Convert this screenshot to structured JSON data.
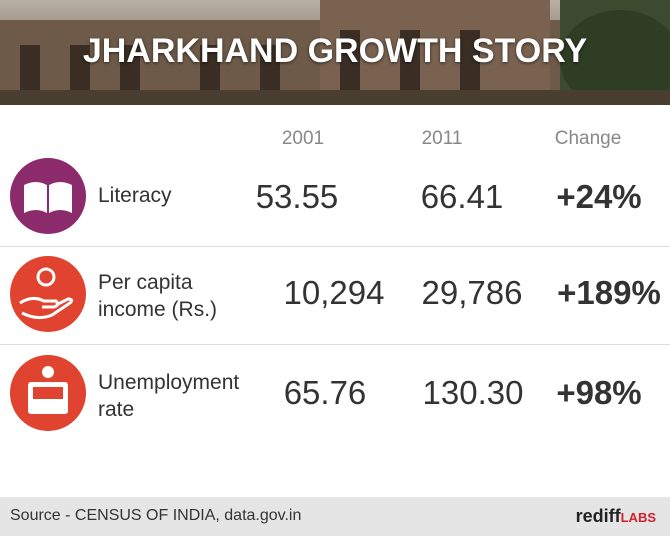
{
  "header": {
    "title": "JHARKHAND GROWTH STORY"
  },
  "table": {
    "columns": [
      "2001",
      "2011",
      "Change"
    ],
    "rows": [
      [
        "Literacy",
        "53.55",
        "66.41",
        "+24%"
      ],
      [
        "Per capita\nincome (Rs.)",
        "10,294",
        "29,786",
        "+189%"
      ],
      [
        "Unemployment\nrate",
        "65.76",
        "130.30",
        "+98%"
      ]
    ]
  },
  "footer": {
    "source": "Source - CENSUS OF INDIA, data.gov.in",
    "brand": "rediff",
    "brand_suffix": "LABS"
  }
}
